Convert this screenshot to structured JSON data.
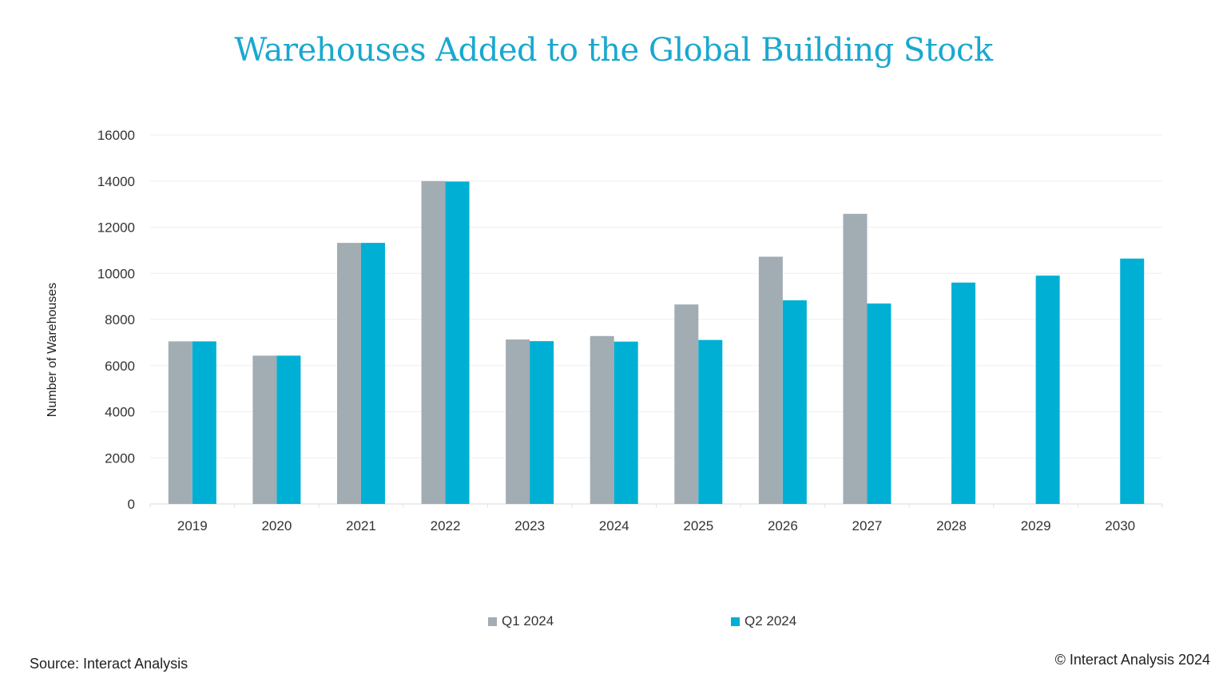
{
  "chart_data": {
    "type": "bar",
    "title": "Warehouses Added to the Global Building Stock",
    "ylabel": "Number of Warehouses",
    "xlabel": "",
    "ylim": [
      0,
      16000
    ],
    "yticks": [
      0,
      2000,
      4000,
      6000,
      8000,
      10000,
      12000,
      14000,
      16000
    ],
    "categories": [
      "2019",
      "2020",
      "2021",
      "2022",
      "2023",
      "2024",
      "2025",
      "2026",
      "2027",
      "2028",
      "2029",
      "2030"
    ],
    "series": [
      {
        "name": "Q1 2024",
        "color": "#a2acb3",
        "values": [
          7050,
          6430,
          11320,
          14000,
          7130,
          7280,
          8650,
          10720,
          12580,
          null,
          null,
          null
        ]
      },
      {
        "name": "Q2 2024",
        "color": "#00b0d4",
        "values": [
          7050,
          6430,
          11320,
          13980,
          7060,
          7040,
          7110,
          8830,
          8690,
          9600,
          9900,
          10640
        ]
      }
    ],
    "legend_position": "bottom-center",
    "grid": true
  },
  "footer": {
    "source": "Source: Interact Analysis",
    "copyright": "© Interact Analysis 2024"
  }
}
